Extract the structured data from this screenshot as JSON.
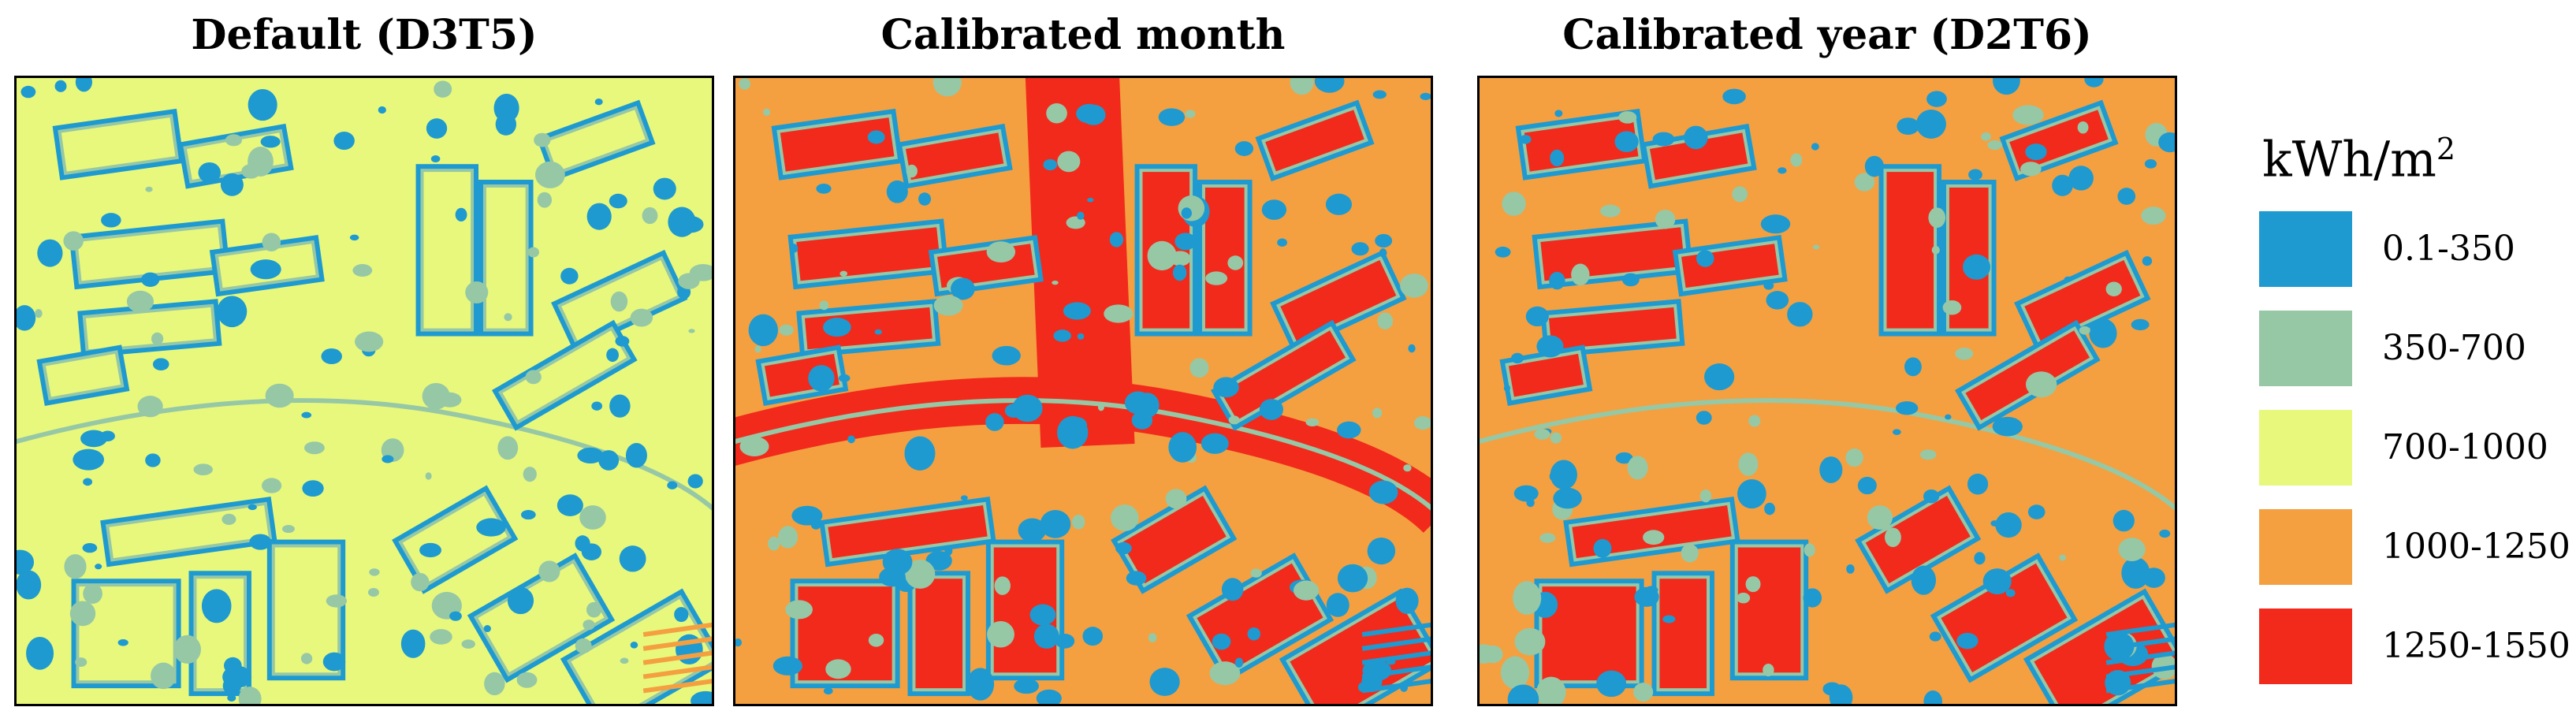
{
  "panels": [
    {
      "title": "Default (D3T5)",
      "dominant_class": "700-1000"
    },
    {
      "title": "Calibrated month",
      "dominant_class": "1000-1250"
    },
    {
      "title": "Calibrated year (D2T6)",
      "dominant_class": "1000-1250"
    }
  ],
  "legend": {
    "unit": "kWh/m",
    "unit_exponent": "2",
    "classes": [
      {
        "label": "0.1-350",
        "color": "#1e9ad0"
      },
      {
        "label": "350-700",
        "color": "#96c8a6"
      },
      {
        "label": "700-1000",
        "color": "#e8f87c"
      },
      {
        "label": "1000-1250",
        "color": "#f4a040"
      },
      {
        "label": "1250-1550",
        "color": "#f22a1c"
      }
    ]
  }
}
